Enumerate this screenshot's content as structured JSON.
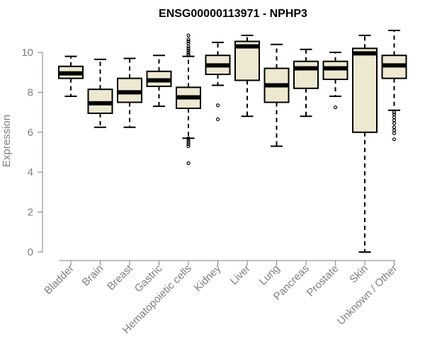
{
  "chart_data": {
    "type": "boxplot",
    "title": "ENSG00000113971 - NPHP3",
    "xlabel": "",
    "ylabel": "Expression",
    "ylim": [
      0,
      11.1
    ],
    "yticks": [
      0,
      2,
      4,
      6,
      8,
      10
    ],
    "grid": false,
    "box_fill": "#ede8d0",
    "categories": [
      "Bladder",
      "Brain",
      "Breast",
      "Gastric",
      "Hematopoietic cells",
      "Kidney",
      "Liver",
      "Lung",
      "Pancreas",
      "Prostate",
      "Skin",
      "Unknown / Other"
    ],
    "boxes": [
      {
        "min": 7.8,
        "q1": 8.7,
        "median": 8.95,
        "q3": 9.3,
        "max": 9.8,
        "outliers": []
      },
      {
        "min": 6.25,
        "q1": 6.95,
        "median": 7.45,
        "q3": 8.15,
        "max": 9.65,
        "outliers": []
      },
      {
        "min": 6.25,
        "q1": 7.5,
        "median": 8.0,
        "q3": 8.7,
        "max": 9.7,
        "outliers": []
      },
      {
        "min": 7.3,
        "q1": 8.3,
        "median": 8.6,
        "q3": 9.05,
        "max": 9.85,
        "outliers": []
      },
      {
        "min": 5.7,
        "q1": 7.2,
        "median": 7.75,
        "q3": 8.25,
        "max": 9.8,
        "outliers": [
          4.45,
          5.3,
          5.4,
          5.5,
          5.6,
          5.7,
          9.85,
          9.9,
          10.0,
          10.1,
          10.2,
          10.3,
          10.45,
          10.55,
          10.65,
          10.85
        ]
      },
      {
        "min": 8.35,
        "q1": 8.9,
        "median": 9.35,
        "q3": 9.85,
        "max": 10.5,
        "outliers": [
          6.65,
          7.35
        ]
      },
      {
        "min": 6.8,
        "q1": 8.6,
        "median": 10.3,
        "q3": 10.55,
        "max": 10.85,
        "outliers": []
      },
      {
        "min": 5.3,
        "q1": 7.5,
        "median": 8.35,
        "q3": 9.2,
        "max": 10.4,
        "outliers": []
      },
      {
        "min": 6.8,
        "q1": 8.2,
        "median": 9.2,
        "q3": 9.55,
        "max": 10.15,
        "outliers": []
      },
      {
        "min": 7.8,
        "q1": 8.65,
        "median": 9.2,
        "q3": 9.55,
        "max": 10.0,
        "outliers": [
          7.25
        ]
      },
      {
        "min": 0.0,
        "q1": 6.0,
        "median": 9.95,
        "q3": 10.2,
        "max": 10.85,
        "outliers": []
      },
      {
        "min": 7.1,
        "q1": 8.7,
        "median": 9.35,
        "q3": 9.85,
        "max": 11.1,
        "outliers": [
          5.65,
          5.95,
          6.1,
          6.25,
          6.45,
          6.6,
          6.75,
          6.9,
          7.0
        ]
      }
    ]
  }
}
